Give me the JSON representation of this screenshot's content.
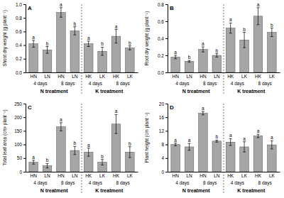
{
  "chart_data": [
    {
      "type": "bar",
      "panel": "A",
      "y_label": "Shoot dry weight (g plant⁻¹)",
      "categories": [
        "HN",
        "LN",
        "HN",
        "LN",
        "HK",
        "LK",
        "HK",
        "LK"
      ],
      "groups": [
        "4 days",
        "8 days",
        "4 days",
        "8 days"
      ],
      "treatments": [
        "N treatment",
        "K treatment"
      ],
      "values": [
        0.42,
        0.33,
        0.88,
        0.61,
        0.42,
        0.31,
        0.53,
        0.36
      ],
      "errors": [
        0.05,
        0.05,
        0.07,
        0.06,
        0.04,
        0.06,
        0.1,
        0.03
      ],
      "letters": [
        "a",
        "b",
        "a",
        "b",
        "a",
        "b",
        "a",
        "b"
      ],
      "color": "#a6a6a6",
      "ylim": [
        0,
        1
      ],
      "yticks": [
        {
          "value": 0,
          "label": "0.0"
        },
        0.2,
        0.4,
        0.6,
        0.8,
        {
          "value": 1,
          "label": "1.0"
        }
      ]
    },
    {
      "type": "bar",
      "panel": "B",
      "y_label": "Root dry weight (g plant⁻¹)",
      "categories": [
        "HN",
        "LN",
        "HN",
        "LN",
        "HK",
        "LK",
        "HK",
        "LK"
      ],
      "groups": [
        "4 days",
        "8 days",
        "4 days",
        "8 days"
      ],
      "treatments": [
        "N treatment",
        "K treatment"
      ],
      "values": [
        0.18,
        0.13,
        0.27,
        0.2,
        0.52,
        0.38,
        0.66,
        0.47
      ],
      "errors": [
        0.02,
        0.01,
        0.03,
        0.02,
        0.06,
        0.09,
        0.1,
        0.05
      ],
      "letters": [
        "a",
        "b",
        "a",
        "b",
        "a",
        "b",
        "a",
        "b"
      ],
      "color": "#a6a6a6",
      "ylim": [
        0,
        0.8
      ],
      "yticks": [
        {
          "value": 0,
          "label": "0.0"
        },
        0.2,
        0.4,
        0.6,
        0.8
      ]
    },
    {
      "type": "bar",
      "panel": "C",
      "y_label": "Total leaf area (cm² plant⁻¹)",
      "categories": [
        "HN",
        "LN",
        "HN",
        "LN",
        "HK",
        "LK",
        "HK",
        "LK"
      ],
      "groups": [
        "4 days",
        "8 days",
        "4 days",
        "8 days"
      ],
      "treatments": [
        "N treatment",
        "K treatment"
      ],
      "values": [
        35,
        22,
        165,
        78,
        72,
        35,
        175,
        72
      ],
      "errors": [
        7,
        8,
        15,
        15,
        15,
        10,
        35,
        20
      ],
      "letters": [
        "a",
        "b",
        "a",
        "b",
        "a",
        "b",
        "a",
        "b"
      ],
      "color": "#a6a6a6",
      "ylim": [
        0,
        250
      ],
      "yticks": [
        0,
        50,
        100,
        150,
        200,
        250
      ]
    },
    {
      "type": "bar",
      "panel": "D",
      "y_label": "Plant height (cm plant⁻¹)",
      "categories": [
        "HN",
        "LN",
        "HN",
        "LN",
        "HK",
        "LK",
        "HK",
        "LK"
      ],
      "groups": [
        "4 days",
        "8 days",
        "4 days",
        "8 days"
      ],
      "treatments": [
        "N treatment",
        "K treatment"
      ],
      "values": [
        8.0,
        7.3,
        17.2,
        9.0,
        8.7,
        7.3,
        10.5,
        7.9
      ],
      "errors": [
        0.4,
        1.0,
        0.5,
        0.3,
        1.0,
        1.5,
        0.5,
        1.2
      ],
      "letters": [
        "a",
        "a",
        "a",
        "b",
        "a",
        "a",
        "a",
        "a"
      ],
      "color": "#a6a6a6",
      "ylim": [
        0,
        20
      ],
      "yticks": [
        0,
        4,
        8,
        12,
        16,
        20
      ]
    }
  ]
}
